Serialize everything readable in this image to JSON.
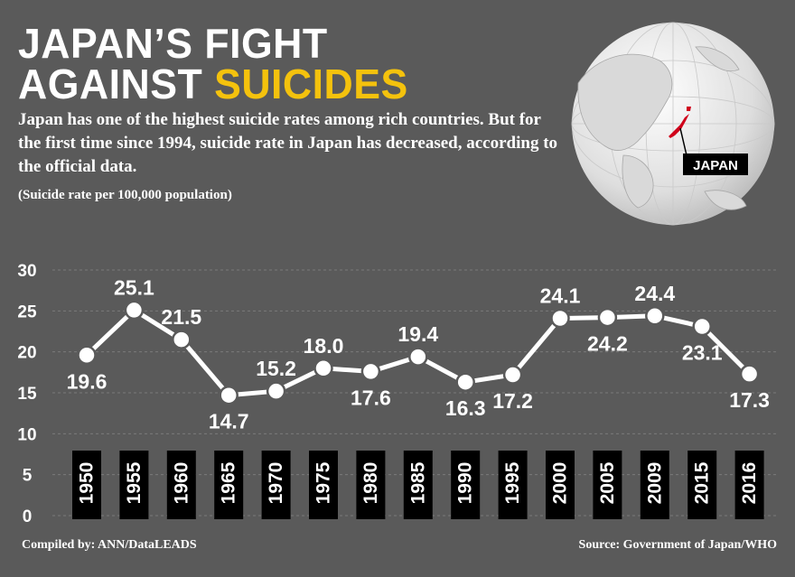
{
  "header": {
    "title_line1": "JAPAN’S FIGHT",
    "title_line2_plain": "AGAINST",
    "title_line2_accent": "SUICIDES",
    "subtitle": "Japan has one of the highest suicide rates among rich countries. But for the first time since 1994, suicide rate in Japan has decreased, according to the official data.",
    "unit_note": "(Suicide rate per 100,000 population)"
  },
  "map": {
    "label": "JAPAN",
    "highlight_color": "#d0021b"
  },
  "footer": {
    "compiled_by": "Compiled by: ANN/DataLEADS",
    "source": "Source: Government of Japan/WHO"
  },
  "colors": {
    "background": "#5a5a5a",
    "accent": "#f4c20d",
    "line": "#ffffff",
    "year_box": "#000000"
  },
  "chart_data": {
    "type": "line",
    "title": "Suicide rate per 100,000 population",
    "xlabel": "",
    "ylabel": "",
    "categories": [
      "1950",
      "1955",
      "1960",
      "1965",
      "1970",
      "1975",
      "1980",
      "1985",
      "1990",
      "1995",
      "2000",
      "2005",
      "2009",
      "2015",
      "2016"
    ],
    "values": [
      19.6,
      25.1,
      21.5,
      14.7,
      15.2,
      18.0,
      17.6,
      19.4,
      16.3,
      17.2,
      24.1,
      24.2,
      24.4,
      23.1,
      17.3
    ],
    "value_labels": [
      "19.6",
      "25.1",
      "21.5",
      "14.7",
      "15.2",
      "18.0",
      "17.6",
      "19.4",
      "16.3",
      "17.2",
      "24.1",
      "24.2",
      "24.4",
      "23.1",
      "17.3"
    ],
    "label_positions": [
      "below",
      "above",
      "above",
      "below",
      "above",
      "above",
      "below",
      "above",
      "below",
      "below",
      "above",
      "below",
      "above",
      "below",
      "below"
    ],
    "y_ticks": [
      0,
      5,
      10,
      15,
      20,
      25,
      30
    ],
    "ylim": [
      0,
      30
    ],
    "grid": true
  }
}
